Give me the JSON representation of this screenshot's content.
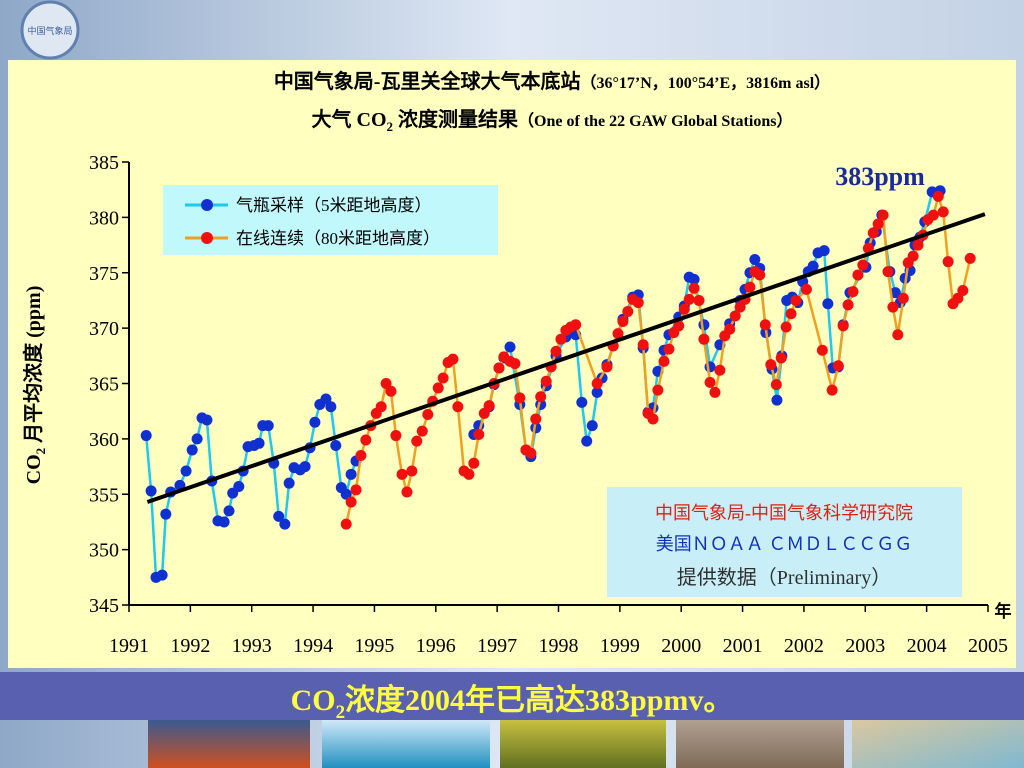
{
  "header": {
    "logo_text": "中国气象局"
  },
  "chart_data": {
    "type": "line",
    "title_line1": [
      "中国气象局-瓦里关全球大气本底站",
      "（36°17’N，100°54’E，3816m asl）"
    ],
    "title_line2": [
      "大气 CO",
      "2",
      " 浓度测量结果",
      "（One of the 22 GAW Global Stations）"
    ],
    "y_label": [
      "CO",
      "2",
      " 月平均浓度 (ppm)"
    ],
    "x_unit": "年",
    "annotation": "383ppm",
    "source_lines": [
      "中国气象局-中国气象科学研究院",
      "美国ＮＯＡＡ ＣＭＤＬＣＣＧＧ",
      "提供数据（Preliminary）"
    ],
    "xlim": [
      1991,
      2005
    ],
    "xticks": [
      1991,
      1992,
      1993,
      1994,
      1995,
      1996,
      1997,
      1998,
      1999,
      2000,
      2001,
      2002,
      2003,
      2004,
      2005
    ],
    "ylim": [
      345,
      385
    ],
    "yticks": [
      345,
      350,
      355,
      360,
      365,
      370,
      375,
      380,
      385
    ],
    "series": [
      {
        "name": "气瓶采样（5米距地高度）",
        "color": "#1ec8f0",
        "marker_color": "#1030d0",
        "x": [
          1991.28,
          1991.36,
          1991.44,
          1991.54,
          1991.6,
          1991.68,
          1991.83,
          1991.93,
          1992.03,
          1992.11,
          1992.19,
          1992.27,
          1992.35,
          1992.45,
          1992.55,
          1992.63,
          1992.69,
          1992.79,
          1992.86,
          1992.94,
          1993.04,
          1993.12,
          1993.18,
          1993.27,
          1993.36,
          1993.44,
          1993.54,
          1993.61,
          1993.69,
          1993.79,
          1993.87,
          1993.95,
          1994.03,
          1994.11,
          1994.21,
          1994.29,
          1994.37,
          1994.46,
          1994.54,
          1994.62,
          1994.7,
          1995.2,
          1996.62,
          1996.7,
          1996.87,
          1996.95,
          1997.03,
          1997.11,
          1997.21,
          1997.37,
          1997.47,
          1997.55,
          1997.63,
          1997.71,
          1997.8,
          1997.96,
          1998.12,
          1998.28,
          1998.38,
          1998.46,
          1998.55,
          1998.63,
          1998.71,
          1998.79,
          1998.89,
          1999.05,
          1999.21,
          1999.3,
          1999.38,
          1999.46,
          1999.54,
          1999.62,
          1999.72,
          1999.8,
          1999.96,
          2000.05,
          2000.13,
          2000.21,
          2000.37,
          2000.47,
          2000.63,
          2000.79,
          2000.96,
          2001.04,
          2001.12,
          2001.2,
          2001.28,
          2001.38,
          2001.48,
          2001.56,
          2001.64,
          2001.72,
          2001.81,
          2001.9,
          2001.98,
          2002.07,
          2002.15,
          2002.23,
          2002.33,
          2002.39,
          2002.47,
          2002.56,
          2002.64,
          2002.75,
          2003.01,
          2003.08,
          2003.18,
          2003.27,
          2003.4,
          2003.49,
          2003.57,
          2003.65,
          2003.73,
          2003.81,
          2003.89,
          2003.97,
          2004.09,
          2004.22
        ],
        "values": [
          360.3,
          355.3,
          347.5,
          347.7,
          353.2,
          355.2,
          355.8,
          357.1,
          359,
          360,
          361.9,
          361.7,
          356.2,
          352.6,
          352.5,
          353.5,
          355.1,
          355.7,
          357.1,
          359.3,
          359.4,
          359.6,
          361.2,
          361.2,
          357.8,
          353,
          352.3,
          356,
          357.4,
          357.2,
          357.5,
          359.2,
          361.5,
          363.1,
          363.6,
          362.9,
          359.4,
          355.6,
          355,
          356.8,
          358,
          null,
          360.4,
          361.2,
          362.9,
          364.9,
          366.4,
          367.3,
          368.3,
          363.1,
          359,
          358.4,
          361,
          363.1,
          364.8,
          367.5,
          369.2,
          369.4,
          363.3,
          359.8,
          361.2,
          364.2,
          365.5,
          366.7,
          368.4,
          370.8,
          372.8,
          373,
          368.2,
          362.4,
          362.8,
          366.1,
          368,
          369.4,
          371,
          372,
          374.6,
          374.4,
          370.3,
          366.5,
          368.5,
          370.4,
          372.5,
          373.5,
          375,
          376.2,
          375.4,
          369.6,
          366.3,
          363.5,
          367.5,
          372.5,
          372.8,
          372.3,
          374.2,
          375.1,
          375.6,
          376.8,
          377,
          372.2,
          366.4,
          366.5,
          370.3,
          373.2,
          375.5,
          377.7,
          378.7,
          380.2,
          375.1,
          373.2,
          372.3,
          374.5,
          375.2,
          377.5,
          378.2,
          379.6,
          382.3,
          382.4
        ]
      },
      {
        "name": "在线连续（80米距地高度）",
        "color": "#f0a020",
        "marker_color": "#f01010",
        "x": [
          1994.54,
          1994.62,
          1994.7,
          1994.78,
          1994.86,
          1994.94,
          1995.03,
          1995.11,
          1995.19,
          1995.27,
          1995.35,
          1995.45,
          1995.53,
          1995.61,
          1995.69,
          1995.78,
          1995.87,
          1995.95,
          1996.04,
          1996.12,
          1996.2,
          1996.28,
          1996.36,
          1996.46,
          1996.54,
          1996.62,
          1996.7,
          1996.79,
          1996.87,
          1996.95,
          1997.03,
          1997.11,
          1997.21,
          1997.29,
          1997.37,
          1997.47,
          1997.55,
          1997.63,
          1997.71,
          1997.8,
          1997.88,
          1997.96,
          1998.04,
          1998.12,
          1998.2,
          1998.28,
          1998.63,
          1998.79,
          1998.89,
          1998.97,
          1999.05,
          1999.13,
          1999.21,
          1999.3,
          1999.38,
          1999.46,
          1999.54,
          1999.62,
          1999.72,
          1999.8,
          1999.88,
          1999.96,
          2000.05,
          2000.13,
          2000.21,
          2000.29,
          2000.37,
          2000.47,
          2000.55,
          2000.63,
          2000.71,
          2000.79,
          2000.88,
          2000.96,
          2001.04,
          2001.12,
          2001.2,
          2001.28,
          2001.37,
          2001.46,
          2001.55,
          2001.63,
          2001.71,
          2001.79,
          2001.87,
          2002.04,
          2002.3,
          2002.46,
          2002.56,
          2002.64,
          2002.72,
          2002.8,
          2002.88,
          2002.96,
          2003.05,
          2003.13,
          2003.21,
          2003.29,
          2003.37,
          2003.45,
          2003.53,
          2003.62,
          2003.7,
          2003.78,
          2003.86,
          2003.94,
          2004.02,
          2004.11,
          2004.19,
          2004.27,
          2004.35,
          2004.43,
          2004.51,
          2004.59,
          2004.71
        ],
        "values": [
          352.3,
          354.3,
          355.4,
          358.5,
          359.9,
          361.2,
          362.3,
          362.9,
          365,
          364.3,
          360.3,
          356.8,
          355.2,
          357.1,
          359.8,
          360.7,
          362.2,
          363.4,
          364.6,
          365.5,
          366.9,
          367.2,
          362.9,
          357.1,
          356.8,
          357.8,
          360.4,
          362.3,
          363,
          365,
          366.4,
          367.4,
          367,
          366.8,
          363.7,
          359,
          358.7,
          361.8,
          363.8,
          365.2,
          366.5,
          367.9,
          369,
          369.8,
          370.1,
          370.3,
          365,
          366.5,
          368.4,
          369.5,
          370.6,
          371.5,
          372.6,
          372.3,
          368.5,
          362.3,
          361.8,
          364.4,
          367,
          368.1,
          369.6,
          370.2,
          371.7,
          372.6,
          373.6,
          372.5,
          369,
          365.1,
          364.2,
          366.2,
          369.3,
          369.9,
          371.1,
          371.9,
          372.6,
          373.7,
          375.1,
          374.8,
          370.3,
          366.7,
          364.9,
          367.3,
          370.1,
          371.3,
          372.5,
          373.5,
          368,
          364.4,
          366.6,
          370.2,
          372.1,
          373.3,
          374.8,
          375.7,
          377.2,
          378.6,
          379.4,
          380.2,
          375.1,
          371.9,
          369.4,
          372.7,
          375.9,
          376.5,
          377.5,
          378.4,
          379.8,
          380.2,
          381.9,
          380.5,
          376,
          372.2,
          372.7,
          373.4,
          376.3
        ]
      },
      {
        "color": "#000000",
        "x": [
          1991.3,
          2004.95
        ],
        "values": [
          354.3,
          380.3
        ]
      }
    ]
  },
  "banner": [
    "CO",
    "2",
    "浓度2004年已高达383ppmv。"
  ]
}
